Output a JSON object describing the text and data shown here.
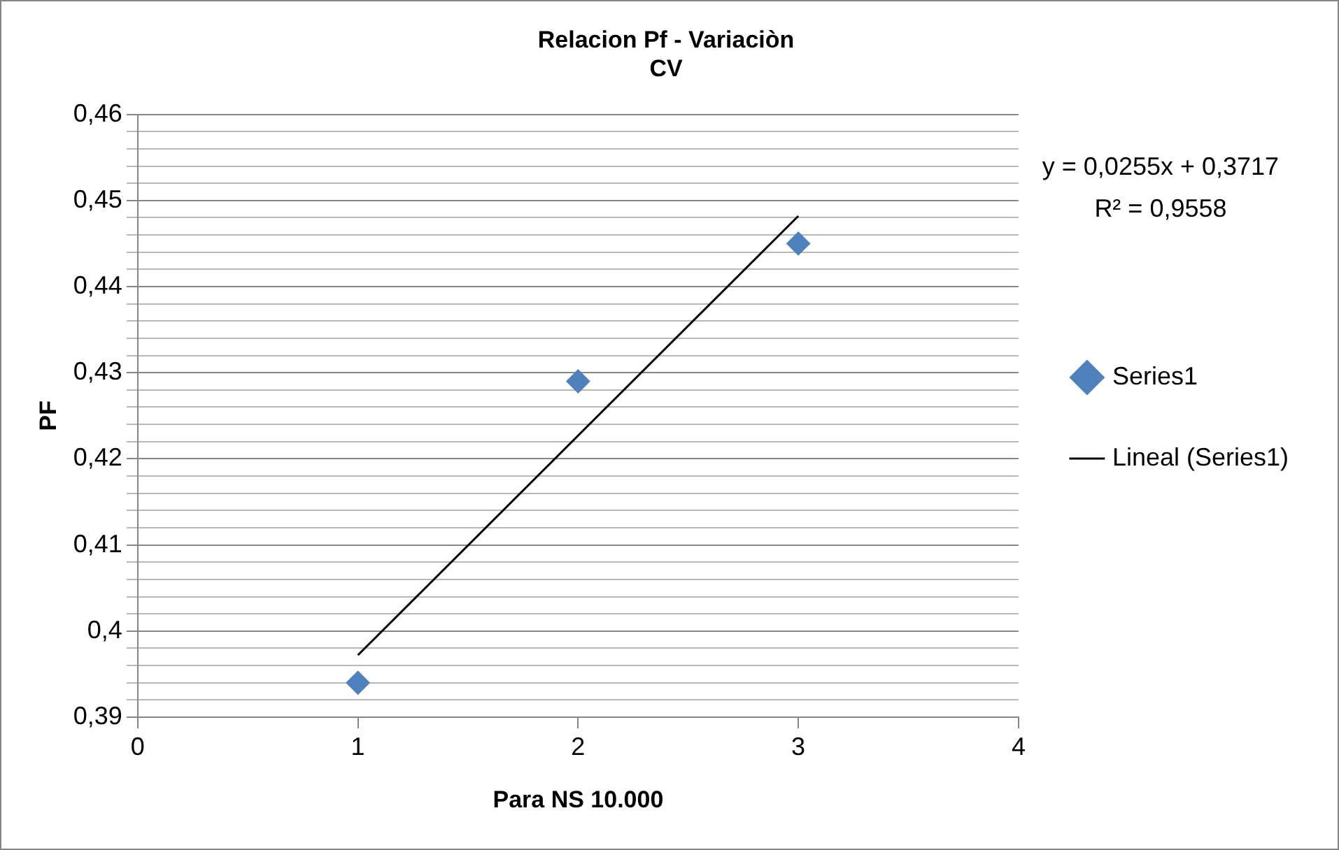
{
  "chart_data": {
    "type": "scatter",
    "title": "Relacion Pf - Variaciòn\nCV",
    "xlabel": "Para NS 10.000",
    "ylabel": "PF",
    "series": [
      {
        "name": "Series1",
        "type": "scatter",
        "color": "#4f81bd",
        "marker": "diamond",
        "x": [
          1,
          2,
          3
        ],
        "values": [
          0.394,
          0.429,
          0.445
        ]
      },
      {
        "name": "Lineal (Series1)",
        "type": "line",
        "color": "#000000",
        "marker": "none",
        "line_style": "solid",
        "x": [
          1,
          3
        ],
        "values": [
          0.3972,
          0.4482
        ]
      }
    ],
    "xlim": [
      0,
      4
    ],
    "xticks": [
      0,
      1,
      2,
      3,
      4
    ],
    "ylim": [
      0.39,
      0.46
    ],
    "yticks": [
      {
        "value": 0.39,
        "label": "0,39"
      },
      {
        "value": 0.392,
        "label": null
      },
      {
        "value": 0.394,
        "label": null
      },
      {
        "value": 0.396,
        "label": null
      },
      {
        "value": 0.398,
        "label": null
      },
      {
        "value": 0.4,
        "label": "0,4"
      },
      {
        "value": 0.402,
        "label": null
      },
      {
        "value": 0.404,
        "label": null
      },
      {
        "value": 0.406,
        "label": null
      },
      {
        "value": 0.408,
        "label": null
      },
      {
        "value": 0.41,
        "label": "0,41"
      },
      {
        "value": 0.412,
        "label": null
      },
      {
        "value": 0.414,
        "label": null
      },
      {
        "value": 0.416,
        "label": null
      },
      {
        "value": 0.418,
        "label": null
      },
      {
        "value": 0.42,
        "label": "0,42"
      },
      {
        "value": 0.422,
        "label": null
      },
      {
        "value": 0.424,
        "label": null
      },
      {
        "value": 0.426,
        "label": null
      },
      {
        "value": 0.428,
        "label": null
      },
      {
        "value": 0.43,
        "label": "0,43"
      },
      {
        "value": 0.432,
        "label": null
      },
      {
        "value": 0.434,
        "label": null
      },
      {
        "value": 0.436,
        "label": null
      },
      {
        "value": 0.438,
        "label": null
      },
      {
        "value": 0.44,
        "label": "0,44"
      },
      {
        "value": 0.442,
        "label": null
      },
      {
        "value": 0.444,
        "label": null
      },
      {
        "value": 0.446,
        "label": null
      },
      {
        "value": 0.448,
        "label": null
      },
      {
        "value": 0.45,
        "label": "0,45"
      },
      {
        "value": 0.452,
        "label": null
      },
      {
        "value": 0.454,
        "label": null
      },
      {
        "value": 0.456,
        "label": null
      },
      {
        "value": 0.458,
        "label": null
      },
      {
        "value": 0.46,
        "label": "0,46"
      }
    ],
    "grid": "y",
    "legend": "right",
    "annotations": [
      "y = 0,0255x + 0,3717",
      "R² = 0,9558"
    ]
  }
}
